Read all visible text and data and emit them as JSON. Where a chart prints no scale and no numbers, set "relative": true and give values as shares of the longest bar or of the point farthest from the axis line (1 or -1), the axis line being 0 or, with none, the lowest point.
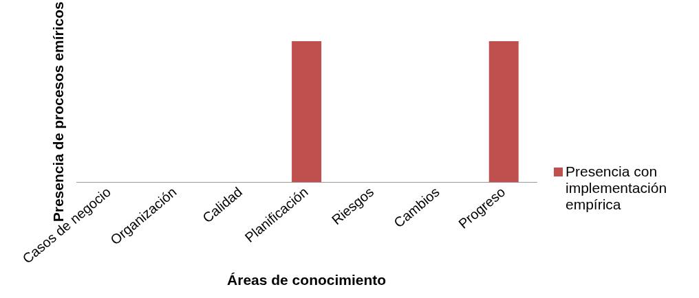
{
  "chart_data": {
    "type": "bar",
    "relative": true,
    "xlabel": "Áreas de conocimiento",
    "ylabel": "Presencia de procesos emíricos",
    "categories": [
      "Casos de negocio",
      "Organización",
      "Calidad",
      "Planificación",
      "Riesgos",
      "Cambios",
      "Progreso"
    ],
    "series": [
      {
        "name": "Presencia con implementación empírica",
        "color": "#c0504d",
        "values": [
          0,
          0,
          0,
          1,
          0,
          0,
          1
        ]
      }
    ],
    "grid": false,
    "legend": "right"
  }
}
